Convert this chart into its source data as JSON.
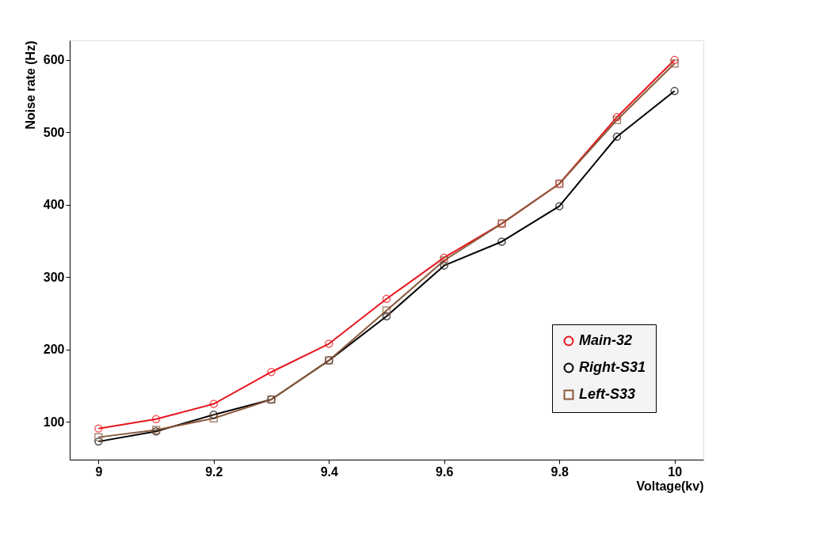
{
  "chart_data": {
    "type": "line",
    "xlabel": "Voltage(kv)",
    "ylabel": "Noise rate (Hz)",
    "x": [
      9,
      9.1,
      9.2,
      9.3,
      9.4,
      9.5,
      9.6,
      9.7,
      9.8,
      9.9,
      10
    ],
    "series": [
      {
        "name": "Main-32",
        "color": "#e8141c",
        "marker": "circle",
        "values": [
          91,
          104,
          125,
          169,
          208,
          270,
          327,
          374,
          429,
          521,
          600
        ]
      },
      {
        "name": "Right-S31",
        "color": "#000000",
        "marker": "circle",
        "values": [
          73,
          87,
          110,
          131,
          185,
          246,
          316,
          349,
          398,
          494,
          557
        ]
      },
      {
        "name": "Left-S33",
        "color": "#8b5a3c",
        "marker": "square",
        "values": [
          79,
          89,
          105,
          131,
          185,
          254,
          323,
          374,
          429,
          517,
          595
        ]
      }
    ],
    "xlim": [
      8.95,
      10.05
    ],
    "xticks": [
      9,
      9.2,
      9.4,
      9.6,
      9.8,
      10
    ],
    "ylim": [
      48,
      627
    ],
    "yticks": [
      100,
      200,
      300,
      400,
      500,
      600
    ],
    "grid": false,
    "legend": "bottom right",
    "line_style": "solid"
  }
}
